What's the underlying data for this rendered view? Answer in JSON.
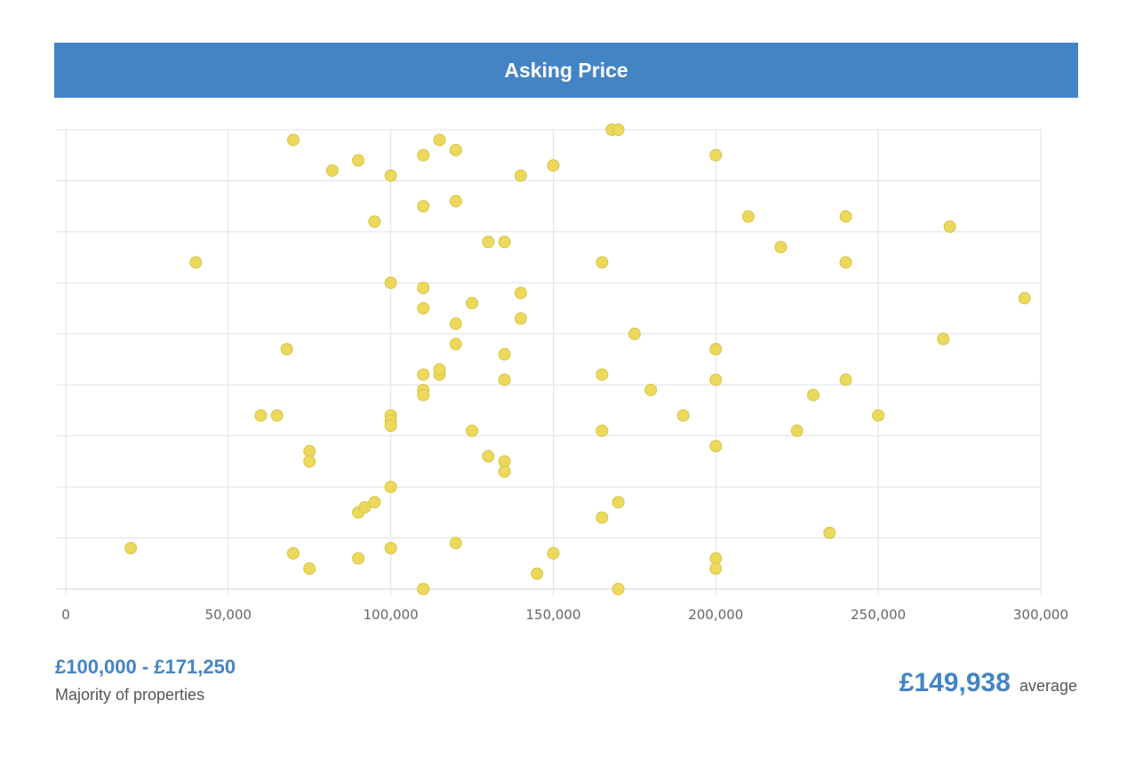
{
  "header": {
    "title": "Asking Price"
  },
  "summary": {
    "range": "£100,000 - £171,250",
    "range_caption": "Majority of properties",
    "average": "£149,938",
    "average_caption": "average"
  },
  "colors": {
    "header_bg": "#4384c5",
    "accent": "#4384c5",
    "point_fill": "#ecd95c",
    "point_stroke": "#d8c447",
    "grid": "#dde3e8"
  },
  "chart_data": {
    "type": "scatter",
    "title": "Asking Price",
    "xlim": [
      0,
      300000
    ],
    "ylim": [
      0,
      9
    ],
    "x_ticks": [
      {
        "value": 0,
        "label": "0"
      },
      {
        "value": 50000,
        "label": "50,000"
      },
      {
        "value": 100000,
        "label": "100,000"
      },
      {
        "value": 150000,
        "label": "150,000"
      },
      {
        "value": 200000,
        "label": "200,000"
      },
      {
        "value": 250000,
        "label": "250,000"
      },
      {
        "value": 300000,
        "label": "300,000"
      }
    ],
    "y_tick_values": [
      0,
      1,
      2,
      3,
      4,
      5,
      6,
      7,
      8,
      9
    ],
    "y_tick_labels_shown": false,
    "grid": true,
    "points": [
      {
        "x": 70000,
        "y": 8.8
      },
      {
        "x": 82000,
        "y": 8.2
      },
      {
        "x": 90000,
        "y": 8.4
      },
      {
        "x": 100000,
        "y": 8.1
      },
      {
        "x": 110000,
        "y": 8.5
      },
      {
        "x": 115000,
        "y": 8.8
      },
      {
        "x": 120000,
        "y": 8.6
      },
      {
        "x": 140000,
        "y": 8.1
      },
      {
        "x": 150000,
        "y": 8.3
      },
      {
        "x": 168000,
        "y": 9.0
      },
      {
        "x": 170000,
        "y": 9.0
      },
      {
        "x": 200000,
        "y": 8.5
      },
      {
        "x": 95000,
        "y": 7.2
      },
      {
        "x": 110000,
        "y": 7.5
      },
      {
        "x": 120000,
        "y": 7.6
      },
      {
        "x": 210000,
        "y": 7.3
      },
      {
        "x": 240000,
        "y": 7.3
      },
      {
        "x": 272000,
        "y": 7.1
      },
      {
        "x": 130000,
        "y": 6.8
      },
      {
        "x": 135000,
        "y": 6.8
      },
      {
        "x": 220000,
        "y": 6.7
      },
      {
        "x": 40000,
        "y": 6.4
      },
      {
        "x": 165000,
        "y": 6.4
      },
      {
        "x": 240000,
        "y": 6.4
      },
      {
        "x": 100000,
        "y": 6.0
      },
      {
        "x": 110000,
        "y": 5.9
      },
      {
        "x": 140000,
        "y": 5.8
      },
      {
        "x": 295000,
        "y": 5.7
      },
      {
        "x": 110000,
        "y": 5.5
      },
      {
        "x": 125000,
        "y": 5.6
      },
      {
        "x": 120000,
        "y": 5.2
      },
      {
        "x": 140000,
        "y": 5.3
      },
      {
        "x": 175000,
        "y": 5.0
      },
      {
        "x": 270000,
        "y": 4.9
      },
      {
        "x": 68000,
        "y": 4.7
      },
      {
        "x": 120000,
        "y": 4.8
      },
      {
        "x": 135000,
        "y": 4.6
      },
      {
        "x": 200000,
        "y": 4.7
      },
      {
        "x": 110000,
        "y": 4.2
      },
      {
        "x": 115000,
        "y": 4.2
      },
      {
        "x": 115000,
        "y": 4.3
      },
      {
        "x": 135000,
        "y": 4.1
      },
      {
        "x": 165000,
        "y": 4.2
      },
      {
        "x": 200000,
        "y": 4.1
      },
      {
        "x": 240000,
        "y": 4.1
      },
      {
        "x": 110000,
        "y": 3.9
      },
      {
        "x": 110000,
        "y": 3.8
      },
      {
        "x": 180000,
        "y": 3.9
      },
      {
        "x": 230000,
        "y": 3.8
      },
      {
        "x": 60000,
        "y": 3.4
      },
      {
        "x": 65000,
        "y": 3.4
      },
      {
        "x": 100000,
        "y": 3.4
      },
      {
        "x": 100000,
        "y": 3.3
      },
      {
        "x": 100000,
        "y": 3.2
      },
      {
        "x": 190000,
        "y": 3.4
      },
      {
        "x": 250000,
        "y": 3.4
      },
      {
        "x": 125000,
        "y": 3.1
      },
      {
        "x": 165000,
        "y": 3.1
      },
      {
        "x": 225000,
        "y": 3.1
      },
      {
        "x": 200000,
        "y": 2.8
      },
      {
        "x": 75000,
        "y": 2.7
      },
      {
        "x": 75000,
        "y": 2.5
      },
      {
        "x": 130000,
        "y": 2.6
      },
      {
        "x": 135000,
        "y": 2.5
      },
      {
        "x": 135000,
        "y": 2.3
      },
      {
        "x": 100000,
        "y": 2.0
      },
      {
        "x": 90000,
        "y": 1.5
      },
      {
        "x": 92000,
        "y": 1.6
      },
      {
        "x": 95000,
        "y": 1.7
      },
      {
        "x": 165000,
        "y": 1.4
      },
      {
        "x": 170000,
        "y": 1.7
      },
      {
        "x": 235000,
        "y": 1.1
      },
      {
        "x": 20000,
        "y": 0.8
      },
      {
        "x": 70000,
        "y": 0.7
      },
      {
        "x": 75000,
        "y": 0.4
      },
      {
        "x": 90000,
        "y": 0.6
      },
      {
        "x": 100000,
        "y": 0.8
      },
      {
        "x": 120000,
        "y": 0.9
      },
      {
        "x": 145000,
        "y": 0.3
      },
      {
        "x": 150000,
        "y": 0.7
      },
      {
        "x": 200000,
        "y": 0.6
      },
      {
        "x": 200000,
        "y": 0.4
      },
      {
        "x": 110000,
        "y": 0.0
      },
      {
        "x": 170000,
        "y": 0.0
      }
    ]
  }
}
